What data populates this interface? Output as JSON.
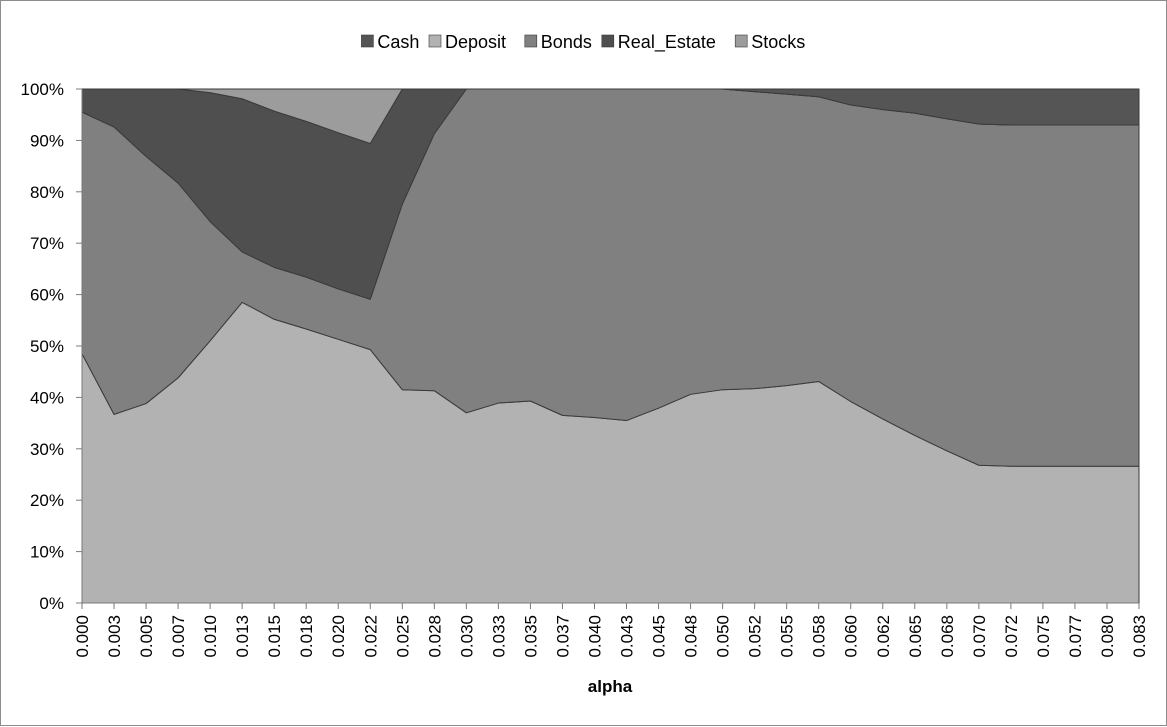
{
  "chart_data": {
    "type": "area",
    "stacked_percent": true,
    "xlabel": "alpha",
    "ylabel": "",
    "ylim": [
      0,
      100
    ],
    "legend_position": "top",
    "categories": [
      "0.000",
      "0.003",
      "0.005",
      "0.007",
      "0.010",
      "0.013",
      "0.015",
      "0.018",
      "0.020",
      "0.022",
      "0.025",
      "0.028",
      "0.030",
      "0.033",
      "0.035",
      "0.037",
      "0.040",
      "0.043",
      "0.045",
      "0.048",
      "0.050",
      "0.052",
      "0.055",
      "0.058",
      "0.060",
      "0.062",
      "0.065",
      "0.068",
      "0.070",
      "0.072",
      "0.075",
      "0.077",
      "0.080",
      "0.083"
    ],
    "yticks": [
      "0%",
      "10%",
      "20%",
      "30%",
      "40%",
      "50%",
      "60%",
      "70%",
      "80%",
      "90%",
      "100%"
    ],
    "series": [
      {
        "name": "Deposit",
        "color": "#b2b2b2",
        "values": [
          48.5,
          36.7,
          38.8,
          43.8,
          51.0,
          58.5,
          55.2,
          53.3,
          51.3,
          49.3,
          41.5,
          41.3,
          37.0,
          38.9,
          39.3,
          36.5,
          36.1,
          35.5,
          37.9,
          40.6,
          41.5,
          41.7,
          42.3,
          43.1,
          39.2,
          35.8,
          32.6,
          29.6,
          26.8,
          26.6,
          26.6,
          26.6,
          26.6,
          26.6
        ]
      },
      {
        "name": "Bonds",
        "color": "#808080",
        "values": [
          47.0,
          55.9,
          48.1,
          37.9,
          23.2,
          9.8,
          10.1,
          10.1,
          9.8,
          9.8,
          36.1,
          50.0,
          63.0,
          61.1,
          60.7,
          63.5,
          63.9,
          64.5,
          62.1,
          59.4,
          58.5,
          57.8,
          56.7,
          55.4,
          57.7,
          60.2,
          62.7,
          64.6,
          66.4,
          66.4,
          66.4,
          66.4,
          66.4,
          66.4
        ]
      },
      {
        "name": "Real_Estate",
        "color": "#4f4f4f",
        "values": [
          4.5,
          7.4,
          13.1,
          18.3,
          25.1,
          29.8,
          30.4,
          30.3,
          30.4,
          30.3,
          22.4,
          8.7,
          0,
          0,
          0,
          0,
          0,
          0,
          0,
          0,
          0,
          0,
          0,
          0,
          0,
          0,
          0,
          0,
          0,
          0,
          0,
          0,
          0,
          0
        ]
      },
      {
        "name": "Stocks",
        "color": "#9c9c9c",
        "values": [
          0,
          0,
          0,
          0,
          0.7,
          1.9,
          4.3,
          6.3,
          8.5,
          10.6,
          0,
          0,
          0,
          0,
          0,
          0,
          0,
          0,
          0,
          0,
          0,
          0,
          0,
          0,
          0,
          0,
          0,
          0,
          0,
          0,
          0,
          0,
          0,
          0
        ]
      },
      {
        "name": "Cash",
        "color": "#555555",
        "values": [
          0,
          0,
          0,
          0,
          0,
          0,
          0,
          0,
          0,
          0,
          0,
          0,
          0,
          0,
          0,
          0,
          0,
          0,
          0,
          0,
          0,
          0.5,
          1.0,
          1.5,
          3.1,
          4.0,
          4.7,
          5.8,
          6.8,
          7.0,
          7.0,
          7.0,
          7.0,
          7.0
        ]
      }
    ],
    "legend_order": [
      "Cash",
      "Deposit",
      "Bonds",
      "Real_Estate",
      "Stocks"
    ]
  }
}
